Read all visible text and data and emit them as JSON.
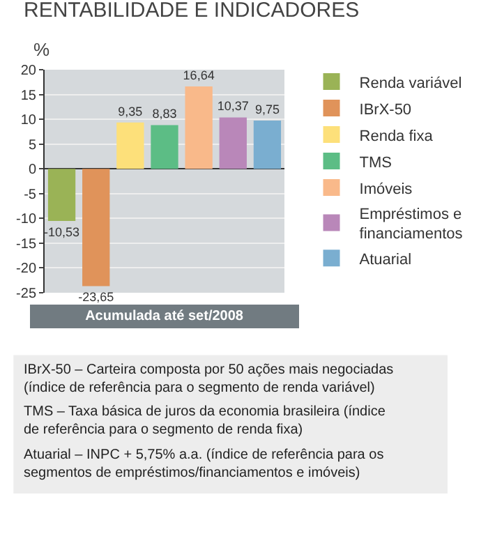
{
  "chart_data": {
    "type": "bar",
    "title": "RENTABILIDADE E INDICADORES",
    "ylabel": "%",
    "xlabel": "Acumulada até set/2008",
    "categories": [
      null,
      null,
      null,
      null,
      null,
      null,
      null
    ],
    "series": [
      {
        "name": "Renda variável",
        "color": "#9ab356",
        "values": [
          -10.53,
          null,
          null,
          null,
          null,
          null,
          null
        ],
        "value_labels": [
          "-10,53",
          null,
          null,
          null,
          null,
          null,
          null
        ]
      },
      {
        "name": "IBrX-50",
        "color": "#e0935a",
        "values": [
          null,
          -23.65,
          null,
          null,
          null,
          null,
          null
        ],
        "value_labels": [
          null,
          "-23,65",
          null,
          null,
          null,
          null,
          null
        ]
      },
      {
        "name": "Renda fixa",
        "color": "#fde07a",
        "values": [
          null,
          null,
          9.35,
          null,
          null,
          null,
          null
        ],
        "value_labels": [
          null,
          null,
          "9,35",
          null,
          null,
          null,
          null
        ]
      },
      {
        "name": "TMS",
        "color": "#5cbd85",
        "values": [
          null,
          null,
          null,
          8.83,
          null,
          null,
          null
        ],
        "value_labels": [
          null,
          null,
          null,
          "8,83",
          null,
          null,
          null
        ]
      },
      {
        "name": "Imóveis",
        "color": "#f9b98a",
        "values": [
          null,
          null,
          null,
          null,
          16.64,
          null,
          null
        ],
        "value_labels": [
          null,
          null,
          null,
          null,
          "16,64",
          null,
          null
        ]
      },
      {
        "name": "Empréstimos e financiamentos",
        "color": "#b987b9",
        "values": [
          null,
          null,
          null,
          null,
          null,
          10.37,
          null
        ],
        "value_labels": [
          null,
          null,
          null,
          null,
          null,
          "10,37",
          null
        ]
      },
      {
        "name": "Atuarial",
        "color": "#7aaed0",
        "values": [
          null,
          null,
          null,
          null,
          null,
          null,
          9.75
        ],
        "value_labels": [
          null,
          null,
          null,
          null,
          null,
          null,
          "9,75"
        ]
      }
    ],
    "ylim": [
      -25,
      20
    ],
    "yticks": [
      -25,
      -20,
      -15,
      -10,
      -5,
      0,
      5,
      10,
      15,
      20
    ],
    "grid": "y",
    "legend": "right",
    "annotations": [
      "IBrX-50 – Carteira composta por 50 ações mais negociadas (índice de referência para o segmento de renda variável)",
      "TMS – Taxa básica de juros da economia brasileira (índice de referência para o segmento de renda fixa)",
      "Atuarial – INPC + 5,75% a.a. (índice de referência para os segmentos de empréstimos/financiamentos e imóveis)"
    ]
  }
}
